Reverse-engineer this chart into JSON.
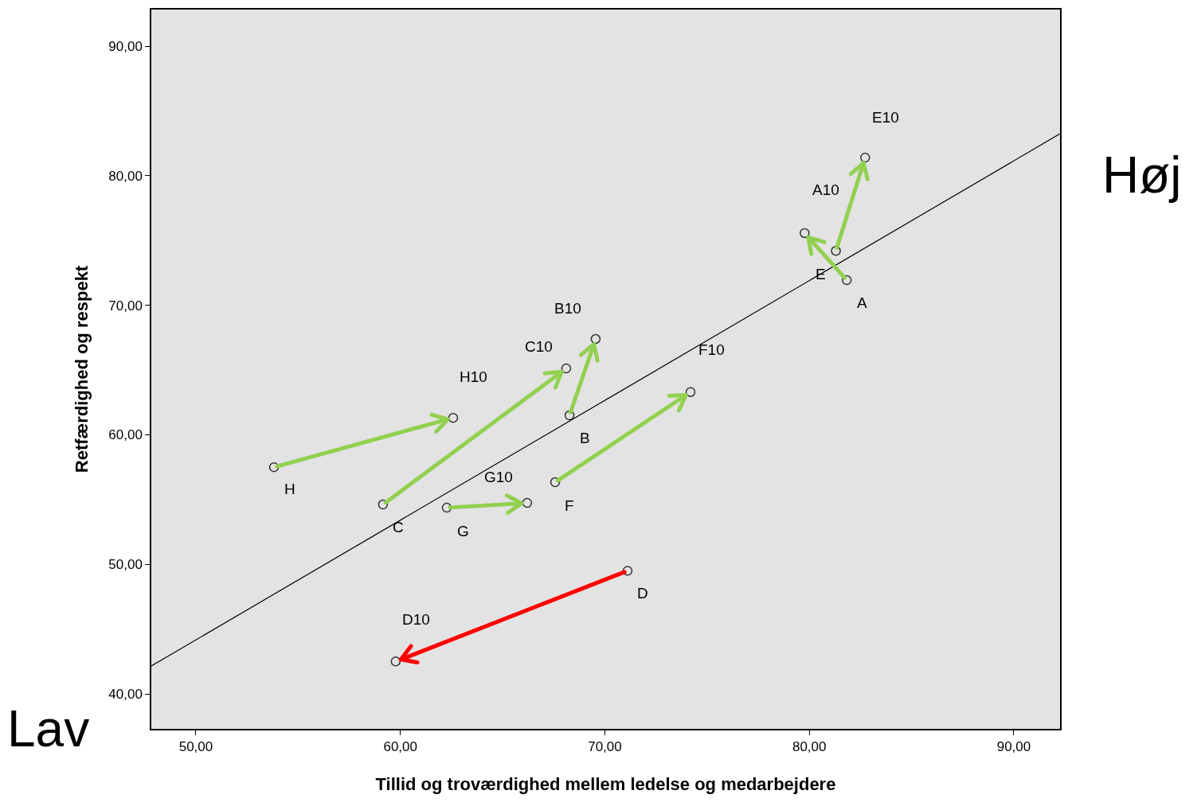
{
  "chart_data": {
    "type": "scatter",
    "xlabel": "Tillid og troværdighed mellem ledelse og medarbejdere",
    "ylabel": "Retfærdighed og respekt",
    "xlim": [
      47.82,
      92.26
    ],
    "ylim": [
      37.3,
      92.83
    ],
    "xticks": [
      {
        "value": 50,
        "label": "50,00"
      },
      {
        "value": 60,
        "label": "60,00"
      },
      {
        "value": 70,
        "label": "70,00"
      },
      {
        "value": 80,
        "label": "80,00"
      },
      {
        "value": 90,
        "label": "90,00"
      }
    ],
    "yticks": [
      {
        "value": 40,
        "label": "40,00"
      },
      {
        "value": 50,
        "label": "50,00"
      },
      {
        "value": 60,
        "label": "60,00"
      },
      {
        "value": 70,
        "label": "70,00"
      },
      {
        "value": 80,
        "label": "80,00"
      },
      {
        "value": 90,
        "label": "90,00"
      }
    ],
    "grid": false,
    "marker": "circle",
    "series": [
      {
        "color": "#333333",
        "x": [
          53.82,
          62.58,
          59.15,
          68.11,
          68.27,
          69.55,
          62.27,
          66.2,
          67.57,
          74.19,
          71.11,
          59.77,
          81.83,
          79.77,
          81.3,
          82.73
        ],
        "values": [
          57.5,
          61.31,
          54.62,
          65.12,
          61.5,
          67.4,
          54.37,
          54.74,
          56.34,
          63.3,
          49.5,
          42.5,
          71.94,
          75.57,
          74.2,
          81.4
        ]
      },
      {
        "type": "line",
        "marker": "none",
        "color": "#000000",
        "x": [
          47.82,
          92.26
        ],
        "values": [
          42.15,
          83.24
        ]
      }
    ],
    "annotations": [
      {
        "text": "E10",
        "x": 82.73,
        "y": 81.4
      },
      {
        "text": "A10",
        "x": 79.77,
        "y": 75.57
      },
      {
        "text": "E",
        "x": 81.3,
        "y": 74.2
      },
      {
        "text": "A",
        "x": 81.83,
        "y": 71.94
      },
      {
        "text": "B10",
        "x": 69.55,
        "y": 67.4
      },
      {
        "text": "C10",
        "x": 68.11,
        "y": 65.12
      },
      {
        "text": "F10",
        "x": 74.19,
        "y": 63.3
      },
      {
        "text": "H10",
        "x": 62.58,
        "y": 61.31
      },
      {
        "text": "B",
        "x": 68.27,
        "y": 61.5
      },
      {
        "text": "H",
        "x": 53.82,
        "y": 57.5
      },
      {
        "text": "G10",
        "x": 66.2,
        "y": 54.74
      },
      {
        "text": "F",
        "x": 67.57,
        "y": 56.34
      },
      {
        "text": "C",
        "x": 59.15,
        "y": 54.62
      },
      {
        "text": "G",
        "x": 62.27,
        "y": 54.37
      },
      {
        "text": "D",
        "x": 71.11,
        "y": 49.5
      },
      {
        "text": "D10",
        "x": 59.77,
        "y": 42.5
      },
      "Høj",
      "Lav"
    ]
  }
}
